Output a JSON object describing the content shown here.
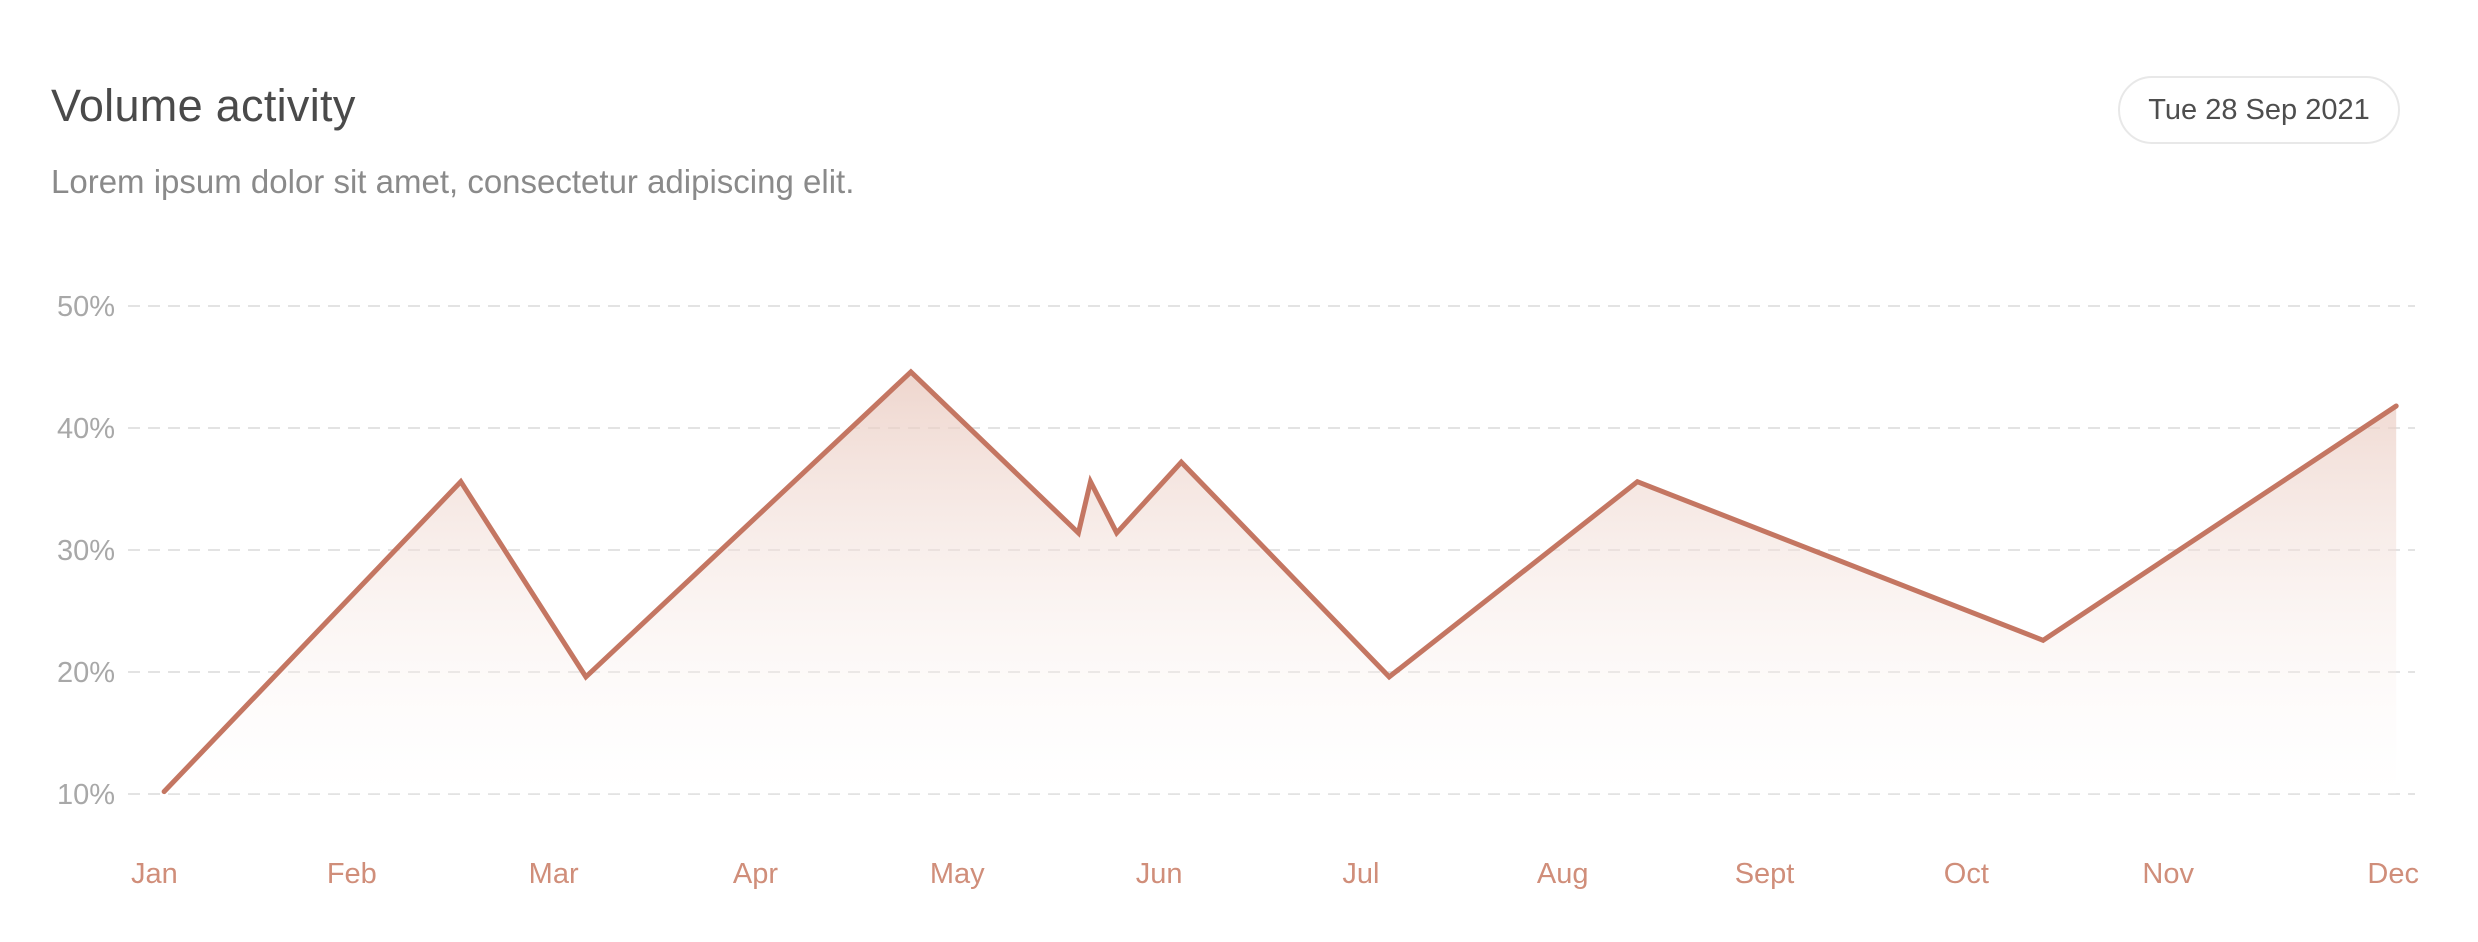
{
  "header": {
    "title": "Volume activity",
    "subtitle": "Lorem ipsum dolor sit amet, consectetur adipiscing elit.",
    "date_label": "Tue 28 Sep 2021"
  },
  "colors": {
    "line": "#c47662",
    "area_top": "#e9c8bd",
    "grid": "#e3e3e3",
    "y_tick": "#a8a8a8",
    "x_tick": "#d08e7a"
  },
  "chart_data": {
    "type": "area",
    "title": "",
    "xlabel": "",
    "ylabel": "",
    "x_ticks": [
      "Jan",
      "Feb",
      "Mar",
      "Apr",
      "May",
      "Jun",
      "Jul",
      "Aug",
      "Sept",
      "Oct",
      "Nov",
      "Dec"
    ],
    "y_ticks": [
      "10%",
      "20%",
      "30%",
      "40%",
      "50%"
    ],
    "ylim": [
      10,
      50
    ],
    "xlim": [
      0,
      11
    ],
    "grid": true,
    "series": [
      {
        "x": [
          0.07,
          1.54,
          2.16,
          3.77,
          4.6,
          4.66,
          4.79,
          5.11,
          6.14,
          7.37,
          9.38,
          11.13
        ],
        "values": [
          10.2,
          35.6,
          19.6,
          44.6,
          31.4,
          35.6,
          31.4,
          37.2,
          19.6,
          35.6,
          22.6,
          41.8
        ]
      }
    ]
  }
}
